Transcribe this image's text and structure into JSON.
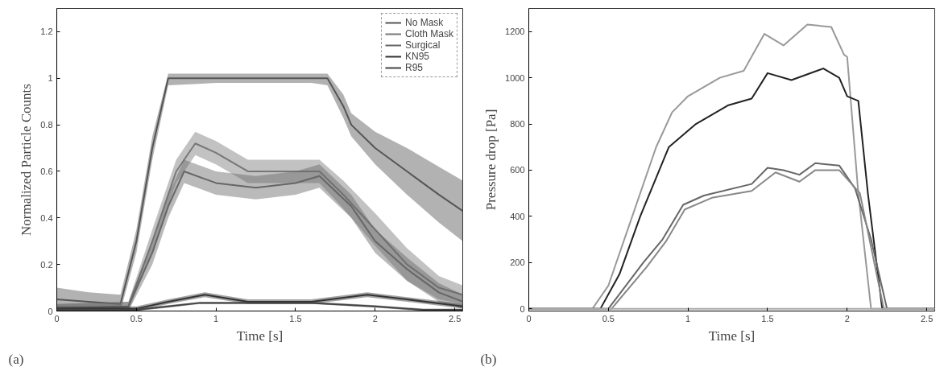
{
  "chart_data": [
    {
      "type": "line",
      "xlabel": "Time [s]",
      "ylabel": "Normalized Particle Counts",
      "xlim": [
        0,
        2.55
      ],
      "ylim": [
        0,
        1.3
      ],
      "xticks": [
        0,
        0.5,
        1,
        1.5,
        2,
        2.5
      ],
      "yticks": [
        0,
        0.2,
        0.4,
        0.6,
        0.8,
        1,
        1.2
      ],
      "legend": "top right",
      "annotations": [
        "(a)"
      ],
      "series": [
        {
          "name": "No Mask",
          "color": "#555555",
          "x": [
            0,
            0.2,
            0.4,
            0.5,
            0.6,
            0.7,
            1.0,
            1.3,
            1.6,
            1.7,
            1.8,
            1.85,
            2.0,
            2.2,
            2.4,
            2.55
          ],
          "values": [
            0.05,
            0.04,
            0.03,
            0.3,
            0.7,
            1.0,
            1.0,
            1.0,
            1.0,
            1.0,
            0.88,
            0.8,
            0.7,
            0.6,
            0.5,
            0.43
          ],
          "lower": [
            0.0,
            0.0,
            0.0,
            0.25,
            0.65,
            0.97,
            0.98,
            0.98,
            0.98,
            0.97,
            0.83,
            0.75,
            0.63,
            0.5,
            0.38,
            0.3
          ],
          "upper": [
            0.1,
            0.08,
            0.07,
            0.35,
            0.75,
            1.02,
            1.02,
            1.02,
            1.02,
            1.02,
            0.93,
            0.85,
            0.77,
            0.7,
            0.62,
            0.56
          ]
        },
        {
          "name": "Cloth Mask",
          "color": "#777777",
          "x": [
            0,
            0.45,
            0.6,
            0.75,
            0.87,
            1.0,
            1.2,
            1.5,
            1.65,
            1.8,
            2.0,
            2.2,
            2.4,
            2.55
          ],
          "values": [
            0.01,
            0.02,
            0.3,
            0.6,
            0.72,
            0.68,
            0.6,
            0.6,
            0.6,
            0.5,
            0.35,
            0.2,
            0.1,
            0.07
          ],
          "lower": [
            0.0,
            0.0,
            0.25,
            0.55,
            0.67,
            0.63,
            0.55,
            0.55,
            0.55,
            0.44,
            0.28,
            0.13,
            0.05,
            0.03
          ],
          "upper": [
            0.03,
            0.04,
            0.35,
            0.65,
            0.77,
            0.73,
            0.65,
            0.65,
            0.65,
            0.56,
            0.42,
            0.27,
            0.15,
            0.11
          ]
        },
        {
          "name": "Surgical",
          "color": "#666666",
          "x": [
            0,
            0.45,
            0.6,
            0.7,
            0.8,
            1.0,
            1.25,
            1.5,
            1.65,
            1.85,
            2.0,
            2.2,
            2.4,
            2.55
          ],
          "values": [
            0.01,
            0.02,
            0.25,
            0.45,
            0.6,
            0.55,
            0.53,
            0.55,
            0.58,
            0.45,
            0.3,
            0.18,
            0.08,
            0.04
          ],
          "lower": [
            0.0,
            0.0,
            0.2,
            0.4,
            0.55,
            0.5,
            0.48,
            0.5,
            0.53,
            0.4,
            0.25,
            0.13,
            0.04,
            0.01
          ],
          "upper": [
            0.03,
            0.04,
            0.3,
            0.5,
            0.65,
            0.6,
            0.58,
            0.6,
            0.63,
            0.5,
            0.35,
            0.23,
            0.12,
            0.07
          ]
        },
        {
          "name": "KN95",
          "color": "#333333",
          "x": [
            0,
            0.5,
            0.7,
            0.93,
            1.2,
            1.6,
            1.95,
            2.2,
            2.55
          ],
          "values": [
            0.01,
            0.01,
            0.04,
            0.07,
            0.04,
            0.04,
            0.07,
            0.05,
            0.02
          ],
          "lower": [
            0.0,
            0.0,
            0.03,
            0.06,
            0.03,
            0.03,
            0.06,
            0.04,
            0.01
          ],
          "upper": [
            0.02,
            0.02,
            0.05,
            0.08,
            0.05,
            0.05,
            0.08,
            0.06,
            0.03
          ]
        },
        {
          "name": "R95",
          "color": "#444444",
          "x": [
            0,
            0.5,
            0.7,
            0.9,
            1.3,
            1.6,
            2.0,
            2.3,
            2.55
          ],
          "values": [
            0.005,
            0.005,
            0.02,
            0.035,
            0.035,
            0.035,
            0.02,
            0.005,
            0.005
          ],
          "lower": [
            0.0,
            0.0,
            0.015,
            0.03,
            0.03,
            0.03,
            0.015,
            0.0,
            0.0
          ],
          "upper": [
            0.01,
            0.01,
            0.025,
            0.04,
            0.04,
            0.04,
            0.025,
            0.01,
            0.01
          ]
        }
      ]
    },
    {
      "type": "line",
      "xlabel": "Time [s]",
      "ylabel": "Pressure drop [Pa]",
      "xlim": [
        0,
        2.55
      ],
      "ylim": [
        -10,
        1300
      ],
      "xticks": [
        0,
        0.5,
        1,
        1.5,
        2,
        2.5
      ],
      "yticks": [
        0,
        200,
        400,
        600,
        800,
        1000,
        1200
      ],
      "annotations": [
        "(b)"
      ],
      "series": [
        {
          "color": "#999999",
          "x": [
            0,
            0.4,
            0.5,
            0.65,
            0.8,
            0.9,
            1.0,
            1.2,
            1.35,
            1.48,
            1.6,
            1.75,
            1.9,
            1.98,
            2.0,
            2.07,
            2.15,
            2.55
          ],
          "values": [
            0,
            0,
            100,
            400,
            700,
            850,
            920,
            1000,
            1030,
            1190,
            1140,
            1230,
            1220,
            1100,
            1090,
            500,
            0,
            0
          ]
        },
        {
          "color": "#222222",
          "x": [
            0,
            0.45,
            0.57,
            0.7,
            0.88,
            1.05,
            1.25,
            1.4,
            1.5,
            1.65,
            1.85,
            1.95,
            2.0,
            2.07,
            2.13,
            2.22,
            2.55
          ],
          "values": [
            0,
            0,
            150,
            400,
            700,
            800,
            880,
            910,
            1020,
            990,
            1040,
            1000,
            920,
            900,
            500,
            0,
            0
          ]
        },
        {
          "color": "#666666",
          "x": [
            0,
            0.5,
            0.72,
            0.84,
            0.97,
            1.1,
            1.4,
            1.5,
            1.6,
            1.7,
            1.8,
            1.95,
            2.05,
            2.15,
            2.25,
            2.55
          ],
          "values": [
            0,
            0,
            200,
            300,
            450,
            490,
            540,
            610,
            600,
            580,
            630,
            620,
            520,
            300,
            0,
            0
          ]
        },
        {
          "color": "#888888",
          "x": [
            0,
            0.52,
            0.74,
            0.86,
            0.98,
            1.15,
            1.4,
            1.55,
            1.7,
            1.8,
            1.95,
            2.08,
            2.23,
            2.55
          ],
          "values": [
            0,
            0,
            180,
            290,
            430,
            480,
            510,
            590,
            550,
            600,
            600,
            500,
            0,
            0
          ]
        },
        {
          "color": "#aaaaaa",
          "x": [
            0,
            0.5,
            1.0,
            1.5,
            2.0,
            2.55
          ],
          "values": [
            0,
            0,
            0,
            0,
            0,
            0
          ]
        }
      ]
    }
  ]
}
